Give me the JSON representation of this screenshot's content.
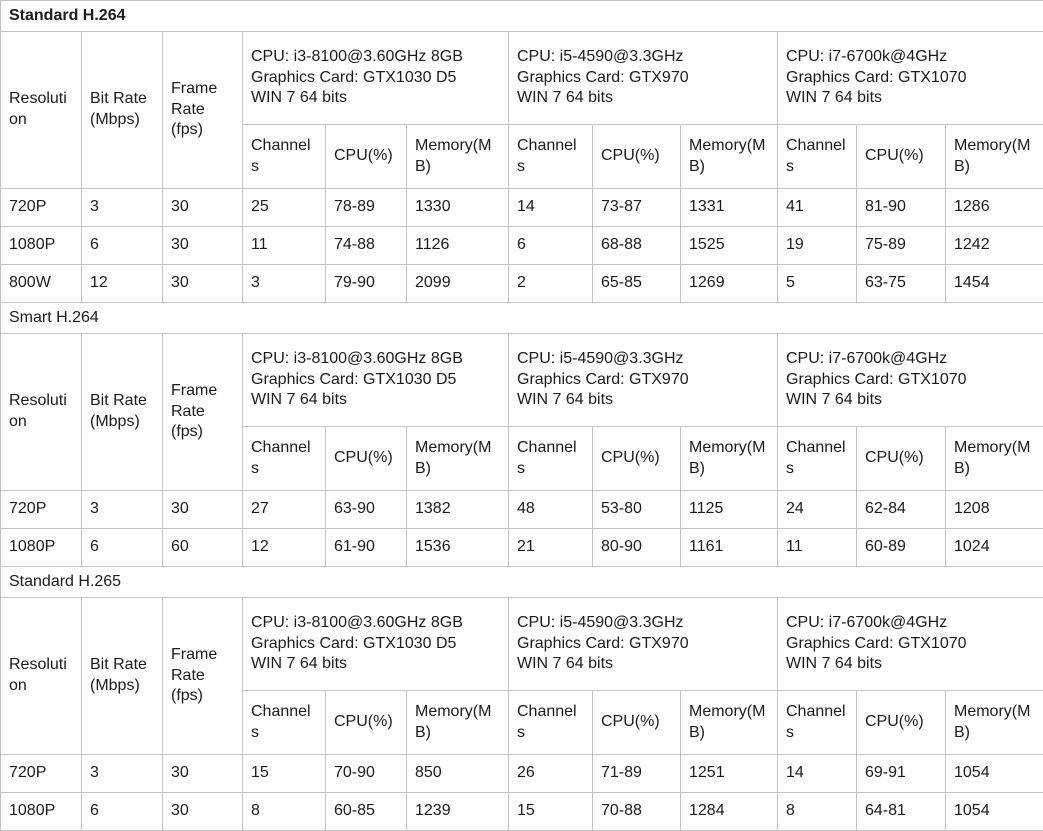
{
  "colors": {
    "section_bar_bg": "#bfbfbf",
    "cell_border": "#c3c3c3",
    "text": "#1b1b1b",
    "background": "#ffffff"
  },
  "table": {
    "row_headers": {
      "resolution": "Resolution",
      "bit_rate": "Bit Rate (Mbps)",
      "frame_rate": "Frame Rate (fps)"
    },
    "sub_columns": [
      "Channels",
      "CPU(%)",
      "Memory(MB)"
    ],
    "cpu_groups": [
      "CPU: i3-8100@3.60GHz 8GB\nGraphics Card: GTX1030 D5\nWIN 7 64 bits",
      "CPU: i5-4590@3.3GHz\nGraphics Card: GTX970\nWIN 7 64 bits",
      "CPU: i7-6700k@4GHz\nGraphics Card: GTX1070\nWIN 7 64 bits"
    ],
    "sections": [
      {
        "title": "Standard H.264",
        "rows": [
          [
            "720P",
            "3",
            "30",
            "25",
            "78-89",
            "1330",
            "14",
            "73-87",
            "1331",
            "41",
            "81-90",
            "1286"
          ],
          [
            "1080P",
            "6",
            "30",
            "11",
            "74-88",
            "1126",
            "6",
            "68-88",
            "1525",
            "19",
            "75-89",
            "1242"
          ],
          [
            "800W",
            "12",
            "30",
            "3",
            "79-90",
            "2099",
            "2",
            "65-85",
            "1269",
            "5",
            "63-75",
            "1454"
          ]
        ]
      },
      {
        "title": "Smart H.264",
        "rows": [
          [
            "720P",
            "3",
            "30",
            "27",
            "63-90",
            "1382",
            "48",
            "53-80",
            "1125",
            "24",
            "62-84",
            "1208"
          ],
          [
            "1080P",
            "6",
            "60",
            "12",
            "61-90",
            "1536",
            "21",
            "80-90",
            "1161",
            "11",
            "60-89",
            "1024"
          ]
        ]
      },
      {
        "title": "Standard H.265",
        "rows": [
          [
            "720P",
            "3",
            "30",
            "15",
            "70-90",
            "850",
            "26",
            "71-89",
            "1251",
            "14",
            "69-91",
            "1054"
          ],
          [
            "1080P",
            "6",
            "30",
            "8",
            "60-85",
            "1239",
            "15",
            "70-88",
            "1284",
            "8",
            "64-81",
            "1054"
          ]
        ]
      }
    ]
  }
}
